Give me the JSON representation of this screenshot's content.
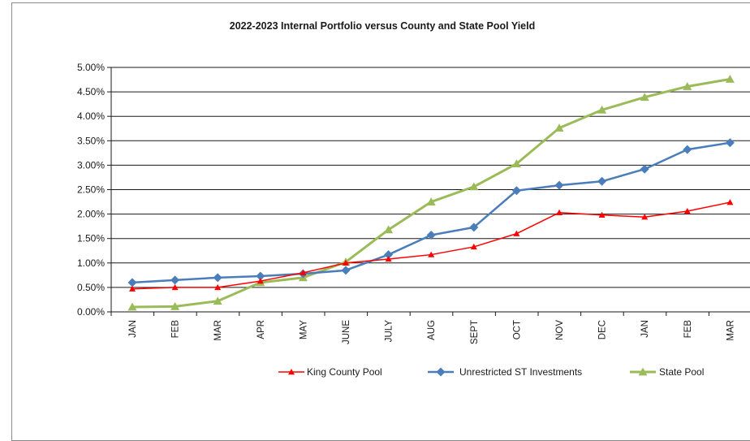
{
  "chart_data": {
    "type": "line",
    "title": "2022-2023 Internal Portfolio versus County and State Pool Yield",
    "xlabel": "",
    "ylabel": "",
    "categories": [
      "JAN",
      "FEB",
      "MAR",
      "APR",
      "MAY",
      "JUNE",
      "JULY",
      "AUG",
      "SEPT",
      "OCT",
      "NOV",
      "DEC",
      "JAN",
      "FEB",
      "MAR"
    ],
    "ylim": [
      0,
      5
    ],
    "yticks": [
      "0.00%",
      "0.50%",
      "1.00%",
      "1.50%",
      "2.00%",
      "2.50%",
      "3.00%",
      "3.50%",
      "4.00%",
      "4.50%",
      "5.00%"
    ],
    "grid": true,
    "legend_position": "bottom-right",
    "series": [
      {
        "name": "King County Pool",
        "color": "#ff0000",
        "marker": "triangle",
        "values": [
          0.47,
          0.5,
          0.5,
          0.63,
          0.8,
          1.0,
          1.08,
          1.17,
          1.33,
          1.6,
          2.03,
          1.98,
          1.94,
          2.06,
          2.24
        ]
      },
      {
        "name": "Unrestricted ST Investments",
        "color": "#4a7ebb",
        "marker": "diamond",
        "values": [
          0.6,
          0.65,
          0.7,
          0.73,
          0.78,
          0.85,
          1.17,
          1.57,
          1.73,
          2.48,
          2.59,
          2.67,
          2.92,
          3.32,
          3.46
        ]
      },
      {
        "name": "State Pool",
        "color": "#9bbb59",
        "marker": "triangle",
        "values": [
          0.1,
          0.11,
          0.22,
          0.6,
          0.7,
          1.02,
          1.68,
          2.25,
          2.56,
          3.03,
          3.76,
          4.13,
          4.39,
          4.61,
          4.76
        ]
      }
    ]
  }
}
